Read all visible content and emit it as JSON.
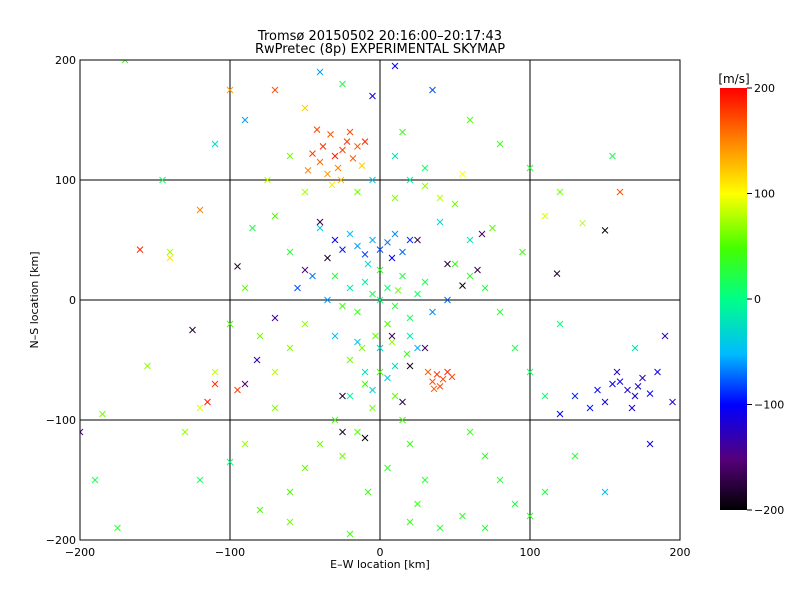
{
  "chart_data": {
    "type": "scatter",
    "title": "Tromsø 20150502 20:16:00–20:17:43",
    "subtitle": "RwPretec (8p) EXPERIMENTAL SKYMAP",
    "xlabel": "E–W location [km]",
    "ylabel": "N–S location [km]",
    "xlim": [
      -200,
      200
    ],
    "ylim": [
      -200,
      200
    ],
    "xticks": [
      "−200",
      "−100",
      "0",
      "100",
      "200"
    ],
    "yticks": [
      "200",
      "100",
      "0",
      "−100",
      "−200"
    ],
    "grid": true,
    "colorbar": {
      "label": "[m/s]",
      "range": [
        -200,
        200
      ],
      "ticks": [
        "200",
        "100",
        "0",
        "−100",
        "−200"
      ]
    },
    "points": [
      [
        -38,
        128,
        185
      ],
      [
        -33,
        138,
        170
      ],
      [
        -30,
        120,
        190
      ],
      [
        -25,
        125,
        175
      ],
      [
        -22,
        132,
        180
      ],
      [
        -40,
        115,
        160
      ],
      [
        -28,
        110,
        150
      ],
      [
        -35,
        105,
        140
      ],
      [
        -18,
        118,
        165
      ],
      [
        -45,
        122,
        178
      ],
      [
        -20,
        140,
        172
      ],
      [
        -15,
        128,
        168
      ],
      [
        -42,
        142,
        176
      ],
      [
        -26,
        100,
        130
      ],
      [
        -10,
        132,
        185
      ],
      [
        -48,
        108,
        150
      ],
      [
        -32,
        96,
        110
      ],
      [
        -12,
        112,
        120
      ],
      [
        38,
        -62,
        180
      ],
      [
        42,
        -66,
        175
      ],
      [
        35,
        -68,
        170
      ],
      [
        45,
        -60,
        185
      ],
      [
        40,
        -72,
        172
      ],
      [
        48,
        -64,
        178
      ],
      [
        32,
        -60,
        165
      ],
      [
        36,
        -74,
        168
      ],
      [
        160,
        -68,
        -110
      ],
      [
        165,
        -75,
        -120
      ],
      [
        170,
        -80,
        -115
      ],
      [
        155,
        -70,
        -100
      ],
      [
        175,
        -65,
        -125
      ],
      [
        180,
        -78,
        -105
      ],
      [
        150,
        -85,
        -112
      ],
      [
        168,
        -90,
        -118
      ],
      [
        185,
        -60,
        -108
      ],
      [
        158,
        -60,
        -122
      ],
      [
        172,
        -72,
        -110
      ],
      [
        145,
        -75,
        -98
      ],
      [
        130,
        -80,
        -90
      ],
      [
        120,
        -95,
        -100
      ],
      [
        140,
        -90,
        -95
      ],
      [
        -15,
        45,
        -60
      ],
      [
        -5,
        50,
        -55
      ],
      [
        5,
        48,
        -70
      ],
      [
        -20,
        55,
        -50
      ],
      [
        10,
        55,
        -65
      ],
      [
        0,
        42,
        -80
      ],
      [
        15,
        40,
        -75
      ],
      [
        -10,
        38,
        -85
      ],
      [
        20,
        50,
        -90
      ],
      [
        -25,
        42,
        -95
      ],
      [
        8,
        35,
        -100
      ],
      [
        -30,
        50,
        -105
      ],
      [
        5,
        10,
        10
      ],
      [
        -5,
        5,
        20
      ],
      [
        10,
        -5,
        30
      ],
      [
        -10,
        15,
        -10
      ],
      [
        0,
        0,
        5
      ],
      [
        15,
        20,
        25
      ],
      [
        -15,
        -10,
        40
      ],
      [
        20,
        -15,
        15
      ],
      [
        -20,
        10,
        -20
      ],
      [
        0,
        25,
        35
      ],
      [
        5,
        -20,
        50
      ],
      [
        -8,
        30,
        -30
      ],
      [
        12,
        8,
        60
      ],
      [
        -25,
        -5,
        45
      ],
      [
        25,
        5,
        10
      ],
      [
        -3,
        -30,
        55
      ],
      [
        30,
        15,
        20
      ],
      [
        -30,
        20,
        30
      ],
      [
        8,
        -35,
        70
      ],
      [
        -12,
        -40,
        65
      ],
      [
        18,
        -45,
        40
      ],
      [
        -20,
        -50,
        60
      ],
      [
        0,
        -60,
        50
      ],
      [
        -10,
        -70,
        45
      ],
      [
        10,
        -80,
        55
      ],
      [
        -5,
        -90,
        62
      ],
      [
        15,
        -100,
        48
      ],
      [
        -15,
        -110,
        52
      ],
      [
        20,
        -120,
        40
      ],
      [
        -25,
        -130,
        58
      ],
      [
        5,
        -140,
        35
      ],
      [
        30,
        -150,
        28
      ],
      [
        -8,
        -160,
        42
      ],
      [
        25,
        -170,
        38
      ],
      [
        55,
        -180,
        32
      ],
      [
        40,
        -190,
        30
      ],
      [
        -50,
        -20,
        70
      ],
      [
        -60,
        -40,
        65
      ],
      [
        -70,
        -60,
        80
      ],
      [
        -80,
        -30,
        60
      ],
      [
        -90,
        10,
        55
      ],
      [
        -100,
        -20,
        50
      ],
      [
        -110,
        -60,
        85
      ],
      [
        -120,
        -90,
        90
      ],
      [
        -130,
        -110,
        70
      ],
      [
        -140,
        40,
        75
      ],
      [
        -160,
        42,
        185
      ],
      [
        -120,
        75,
        150
      ],
      [
        -115,
        -85,
        190
      ],
      [
        -95,
        -75,
        178
      ],
      [
        -110,
        -70,
        182
      ],
      [
        50,
        30,
        40
      ],
      [
        60,
        20,
        35
      ],
      [
        70,
        10,
        25
      ],
      [
        80,
        -10,
        30
      ],
      [
        90,
        -40,
        20
      ],
      [
        100,
        -60,
        15
      ],
      [
        110,
        -80,
        10
      ],
      [
        120,
        -20,
        5
      ],
      [
        95,
        40,
        45
      ],
      [
        75,
        60,
        55
      ],
      [
        50,
        80,
        60
      ],
      [
        30,
        95,
        70
      ],
      [
        10,
        85,
        65
      ],
      [
        -50,
        90,
        75
      ],
      [
        -70,
        70,
        50
      ],
      [
        -60,
        40,
        30
      ],
      [
        -40,
        60,
        -40
      ],
      [
        40,
        65,
        -30
      ],
      [
        60,
        50,
        -20
      ],
      [
        -85,
        60,
        20
      ],
      [
        -30,
        -100,
        45
      ],
      [
        -40,
        -120,
        60
      ],
      [
        -50,
        -140,
        55
      ],
      [
        -60,
        -160,
        50
      ],
      [
        60,
        -110,
        40
      ],
      [
        70,
        -130,
        35
      ],
      [
        80,
        -150,
        30
      ],
      [
        90,
        -170,
        25
      ],
      [
        -70,
        -90,
        65
      ],
      [
        -90,
        -120,
        72
      ],
      [
        -20,
        -80,
        -10
      ],
      [
        -10,
        -60,
        -20
      ],
      [
        0,
        -40,
        -30
      ],
      [
        10,
        -55,
        -25
      ],
      [
        20,
        -30,
        -15
      ],
      [
        -5,
        -75,
        -35
      ],
      [
        5,
        -65,
        -40
      ],
      [
        -15,
        -35,
        -45
      ],
      [
        -30,
        -30,
        -50
      ],
      [
        25,
        -40,
        -55
      ],
      [
        -35,
        0,
        -60
      ],
      [
        -45,
        20,
        -70
      ],
      [
        35,
        -10,
        -65
      ],
      [
        45,
        0,
        -75
      ],
      [
        -55,
        10,
        -80
      ],
      [
        -50,
        25,
        -150
      ],
      [
        -40,
        65,
        -170
      ],
      [
        -35,
        35,
        -190
      ],
      [
        -25,
        -80,
        -180
      ],
      [
        15,
        -85,
        -175
      ],
      [
        -10,
        -115,
        -200
      ],
      [
        -25,
        -110,
        -185
      ],
      [
        8,
        -30,
        -165
      ],
      [
        20,
        -55,
        -190
      ],
      [
        30,
        -40,
        -160
      ],
      [
        -70,
        -15,
        -140
      ],
      [
        -82,
        -50,
        -130
      ],
      [
        -95,
        28,
        -180
      ],
      [
        25,
        50,
        -170
      ],
      [
        45,
        30,
        -180
      ],
      [
        55,
        12,
        -200
      ],
      [
        65,
        25,
        -175
      ],
      [
        68,
        55,
        -160
      ],
      [
        118,
        22,
        -185
      ],
      [
        150,
        58,
        -195
      ],
      [
        -200,
        -110,
        -150
      ],
      [
        -125,
        -25,
        -180
      ],
      [
        -90,
        -70,
        -160
      ],
      [
        -170,
        200,
        40
      ],
      [
        -145,
        100,
        10
      ],
      [
        -140,
        35,
        110
      ],
      [
        -155,
        -55,
        70
      ],
      [
        -185,
        -95,
        60
      ],
      [
        -190,
        -150,
        20
      ],
      [
        -175,
        -190,
        30
      ],
      [
        -100,
        -135,
        5
      ],
      [
        -120,
        -150,
        15
      ],
      [
        -80,
        -175,
        50
      ],
      [
        -40,
        190,
        -60
      ],
      [
        -25,
        180,
        20
      ],
      [
        10,
        195,
        -100
      ],
      [
        -5,
        170,
        -110
      ],
      [
        35,
        175,
        -80
      ],
      [
        60,
        150,
        50
      ],
      [
        80,
        130,
        40
      ],
      [
        100,
        110,
        30
      ],
      [
        120,
        90,
        60
      ],
      [
        155,
        120,
        20
      ],
      [
        160,
        90,
        170
      ],
      [
        135,
        64,
        80
      ],
      [
        110,
        70,
        90
      ],
      [
        170,
        -40,
        -20
      ],
      [
        190,
        -30,
        -130
      ],
      [
        130,
        -130,
        30
      ],
      [
        110,
        -160,
        25
      ],
      [
        150,
        -160,
        -50
      ],
      [
        180,
        -120,
        -110
      ],
      [
        195,
        -85,
        -115
      ],
      [
        -60,
        -185,
        60
      ],
      [
        -20,
        -195,
        45
      ],
      [
        20,
        -185,
        38
      ],
      [
        70,
        -190,
        28
      ],
      [
        100,
        -180,
        35
      ],
      [
        -110,
        130,
        -30
      ],
      [
        -90,
        150,
        -60
      ],
      [
        -70,
        175,
        170
      ],
      [
        -50,
        160,
        120
      ],
      [
        -100,
        175,
        140
      ],
      [
        10,
        120,
        -20
      ],
      [
        20,
        100,
        -10
      ],
      [
        30,
        110,
        10
      ],
      [
        -5,
        100,
        -40
      ],
      [
        15,
        140,
        40
      ],
      [
        -15,
        90,
        60
      ],
      [
        40,
        85,
        80
      ],
      [
        55,
        105,
        100
      ],
      [
        -60,
        120,
        60
      ],
      [
        -75,
        100,
        80
      ]
    ]
  }
}
